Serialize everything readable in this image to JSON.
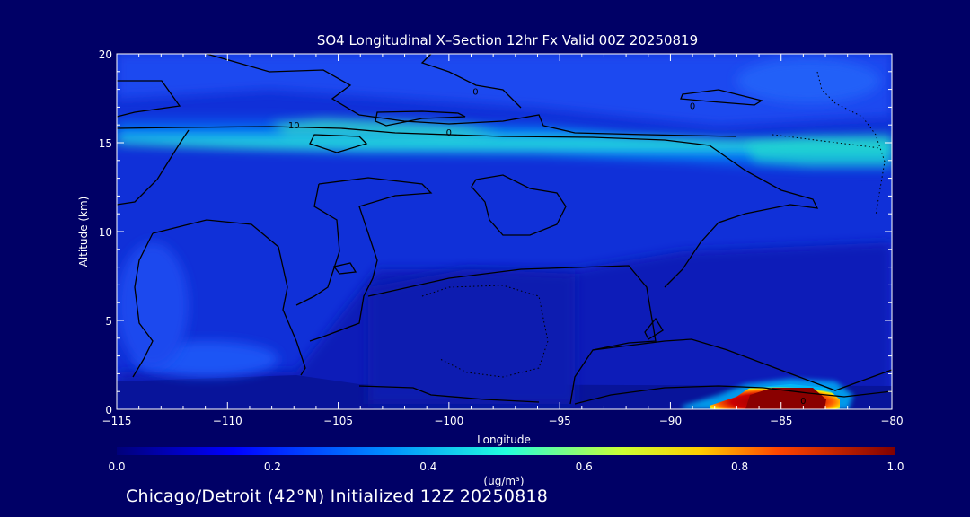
{
  "chart_data": {
    "type": "heatmap",
    "title": "SO4 Longitudinal X–Section 12hr  Fx Valid 00Z 20250819",
    "xlabel": "Longitude",
    "ylabel": "Altitude (km)",
    "xlim": [
      -115,
      -80
    ],
    "ylim": [
      0,
      20
    ],
    "x_ticks": [
      -115,
      -110,
      -105,
      -100,
      -95,
      -90,
      -85,
      -80
    ],
    "x_tick_labels": [
      "−115",
      "−110",
      "−105",
      "−100",
      "−95",
      "−90",
      "−85",
      "−80"
    ],
    "y_ticks": [
      0,
      5,
      10,
      15,
      20
    ],
    "y_tick_labels": [
      "0",
      "5",
      "10",
      "15",
      "20"
    ],
    "colorbar": {
      "label": "(ug/m³)",
      "min": 0.0,
      "max": 1.0,
      "ticks": [
        0.0,
        0.2,
        0.4,
        0.6,
        0.8,
        1.0
      ],
      "tick_labels": [
        "0.0",
        "0.2",
        "0.4",
        "0.6",
        "0.8",
        "1.0"
      ]
    },
    "contour_labels": [
      {
        "text": "10",
        "lon": -107,
        "alt": 16.0
      },
      {
        "text": "0",
        "lon": -100,
        "alt": 15.6
      },
      {
        "text": "0",
        "lon": -98.8,
        "alt": 17.9
      },
      {
        "text": "0",
        "lon": -89,
        "alt": 17.1
      },
      {
        "text": "0",
        "lon": -84,
        "alt": 0.5
      }
    ],
    "features": [
      {
        "name": "tropopause aerosol layer",
        "lon_range": [
          -115,
          -80
        ],
        "alt": 15.5,
        "value": 0.45
      },
      {
        "name": "surface plume",
        "lon": -85,
        "alt": 0.6,
        "value": 1.0
      }
    ]
  },
  "footer": "Chicago/Detroit (42°N) Initialized 12Z 20250818"
}
